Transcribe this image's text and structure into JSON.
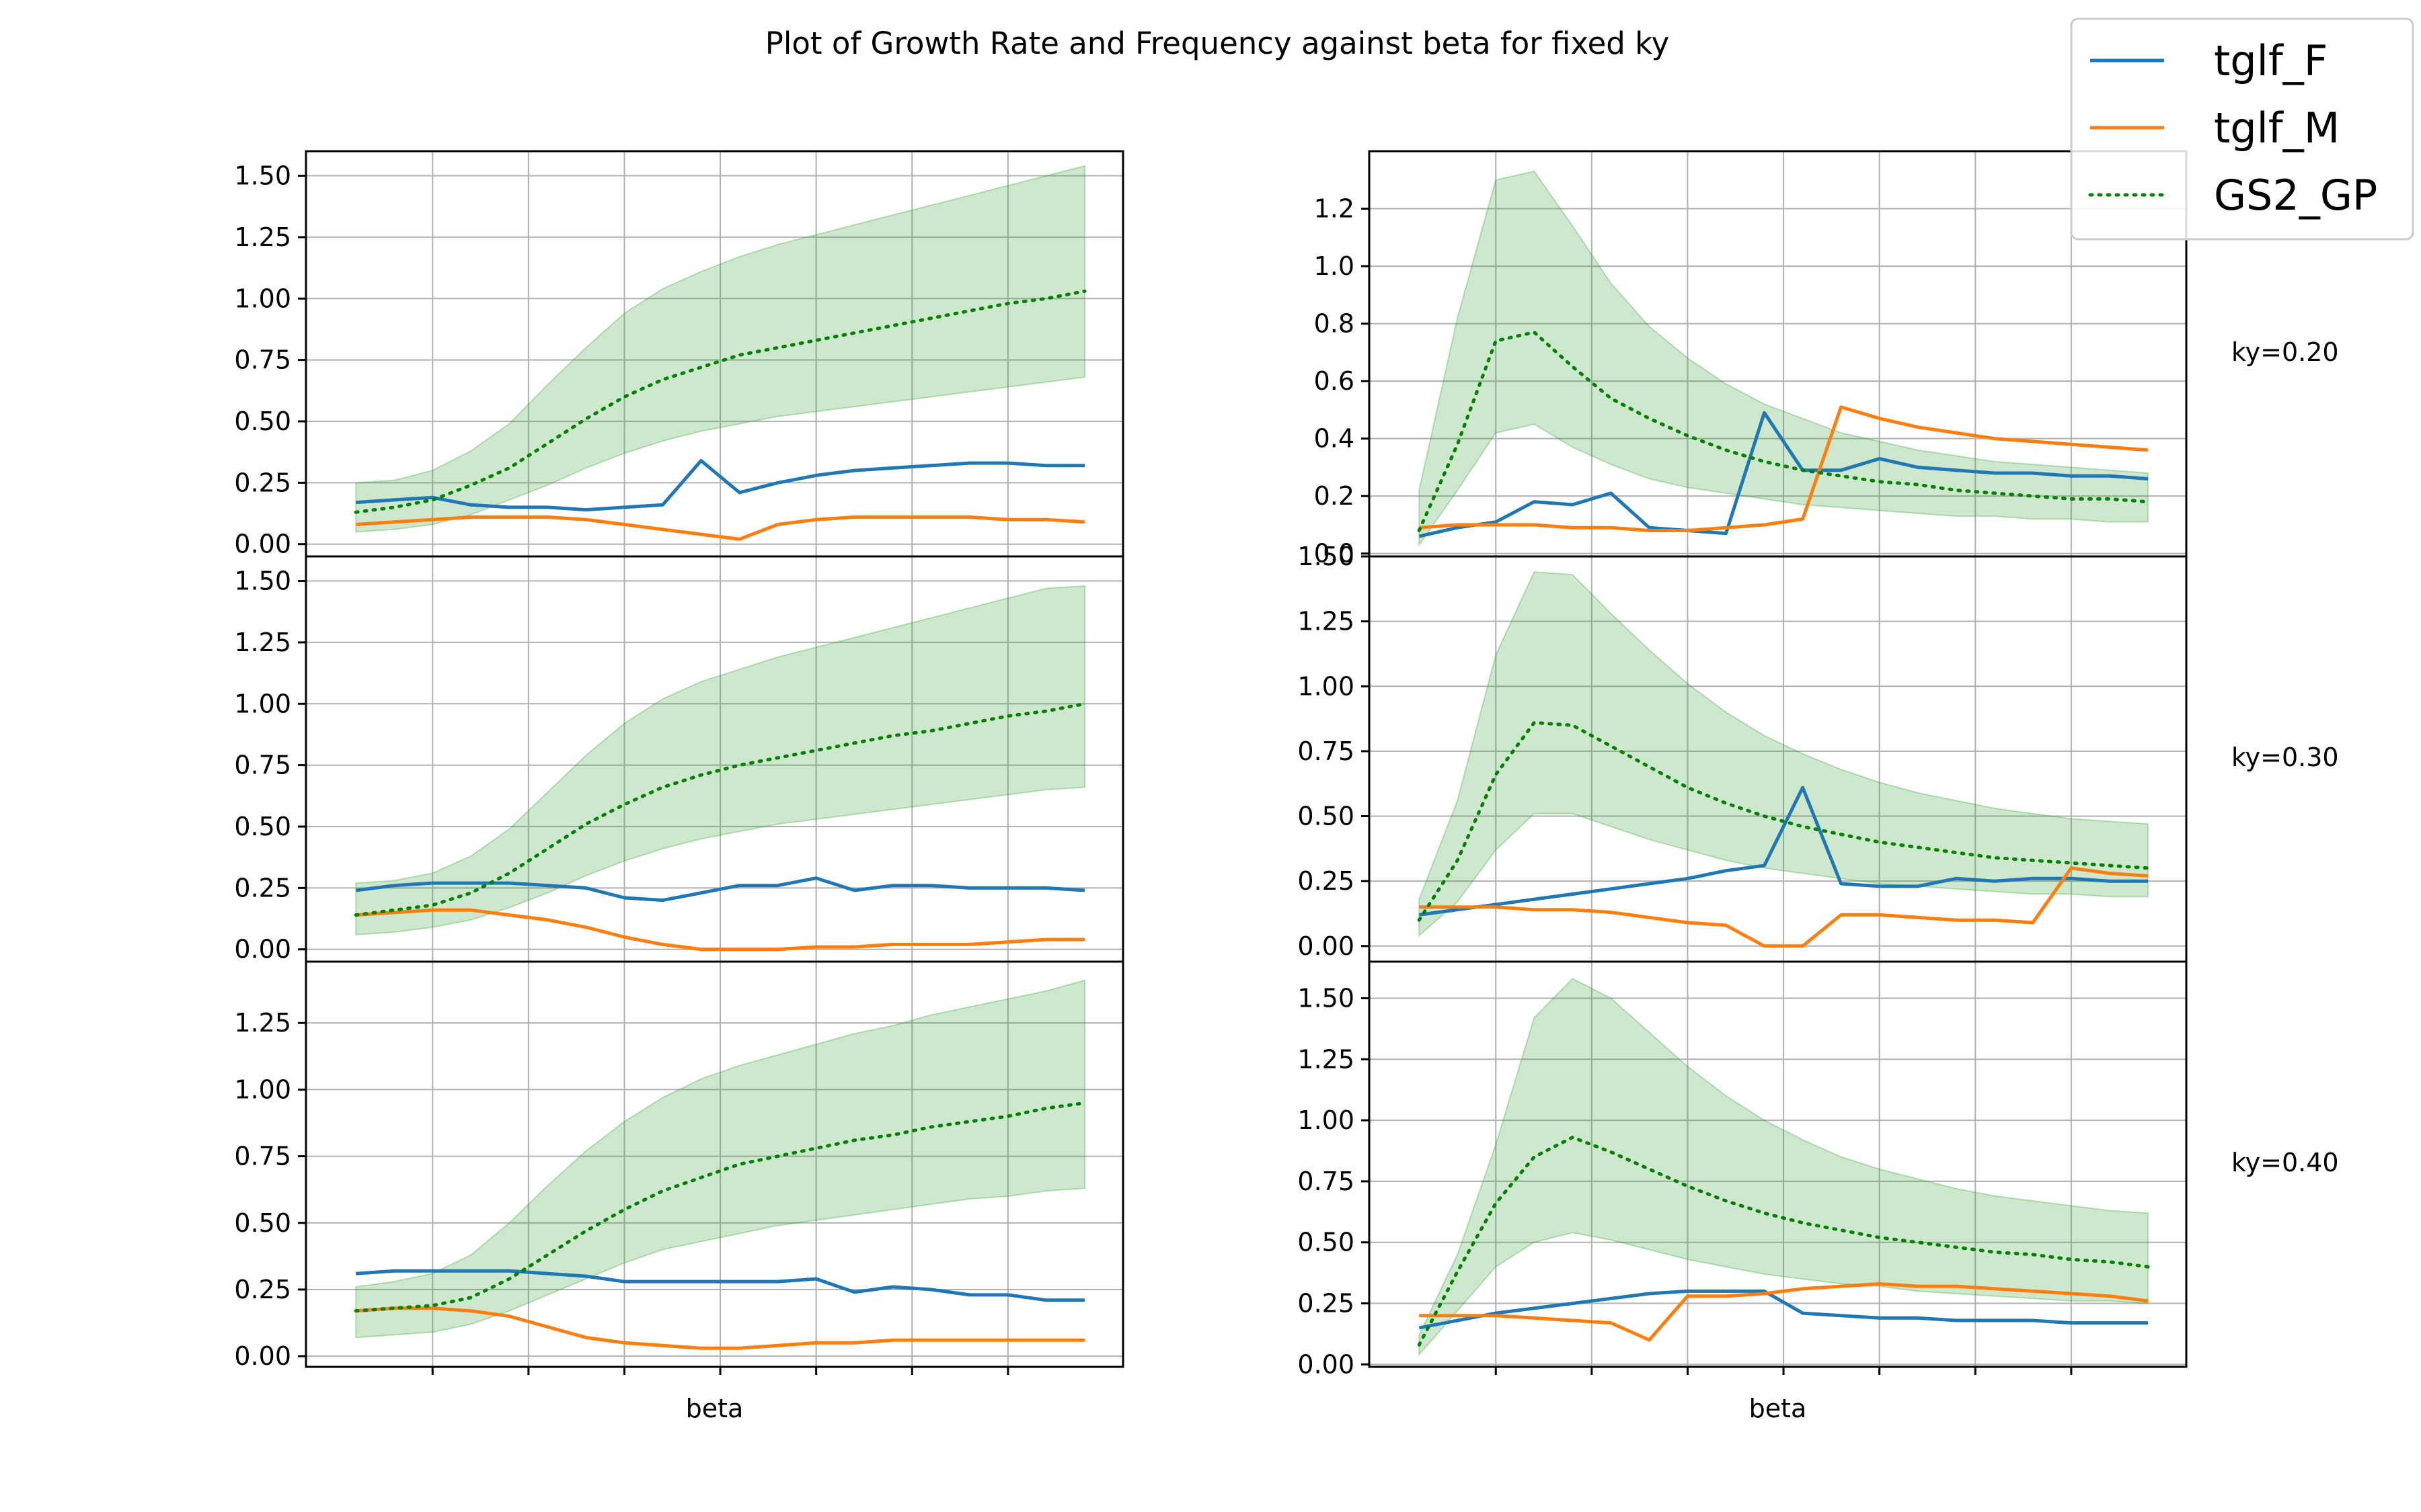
{
  "figure": {
    "title": "Plot of Growth Rate and Frequency against beta for fixed ky"
  },
  "legend": {
    "placement": "top-right",
    "entries": [
      {
        "label": "tglf_F",
        "color": "#1f77b4",
        "style": "solid"
      },
      {
        "label": "tglf_M",
        "color": "#ff7f0e",
        "style": "solid"
      },
      {
        "label": "GS2_GP",
        "color": "#008000",
        "style": "dotted"
      }
    ]
  },
  "row_labels": [
    "ky=0.20",
    "ky=0.30",
    "ky=0.40"
  ],
  "colors": {
    "tglf_F": "#1f77b4",
    "tglf_M": "#ff7f0e",
    "gp": "#008000",
    "band": "#2ca02c"
  },
  "chart_data": [
    {
      "type": "line",
      "xlabel": "",
      "ylabel": "",
      "grid": true,
      "ylim": [
        -0.05,
        1.6
      ],
      "yticks": [
        0.0,
        0.25,
        0.5,
        0.75,
        1.0,
        1.25,
        1.5
      ],
      "yticklabels": [
        "0.00",
        "0.25",
        "0.50",
        "0.75",
        "1.00",
        "1.25",
        "1.50"
      ],
      "x": [
        0,
        1,
        2,
        3,
        4,
        5,
        6,
        7,
        8,
        9,
        10,
        11,
        12,
        13,
        14,
        15,
        16,
        17,
        18,
        19
      ],
      "series": [
        {
          "name": "tglf_F",
          "values": [
            0.17,
            0.18,
            0.19,
            0.16,
            0.15,
            0.15,
            0.14,
            0.15,
            0.16,
            0.34,
            0.21,
            0.25,
            0.28,
            0.3,
            0.31,
            0.32,
            0.33,
            0.33,
            0.32,
            0.32
          ]
        },
        {
          "name": "tglf_M",
          "values": [
            0.08,
            0.09,
            0.1,
            0.11,
            0.11,
            0.11,
            0.1,
            0.08,
            0.06,
            0.04,
            0.02,
            0.08,
            0.1,
            0.11,
            0.11,
            0.11,
            0.11,
            0.1,
            0.1,
            0.09
          ]
        },
        {
          "name": "GS2_GP",
          "values": [
            0.13,
            0.15,
            0.18,
            0.24,
            0.31,
            0.41,
            0.51,
            0.6,
            0.67,
            0.72,
            0.77,
            0.8,
            0.83,
            0.86,
            0.89,
            0.92,
            0.95,
            0.98,
            1.0,
            1.03
          ]
        }
      ],
      "band": {
        "lower": [
          0.05,
          0.06,
          0.08,
          0.12,
          0.18,
          0.24,
          0.31,
          0.37,
          0.42,
          0.46,
          0.49,
          0.52,
          0.54,
          0.56,
          0.58,
          0.6,
          0.62,
          0.64,
          0.66,
          0.68
        ],
        "upper": [
          0.25,
          0.26,
          0.3,
          0.38,
          0.49,
          0.65,
          0.8,
          0.94,
          1.04,
          1.11,
          1.17,
          1.22,
          1.26,
          1.3,
          1.34,
          1.38,
          1.42,
          1.46,
          1.5,
          1.54
        ]
      }
    },
    {
      "type": "line",
      "xlabel": "",
      "ylabel": "",
      "grid": true,
      "ylim": [
        -0.05,
        1.6
      ],
      "yticks": [
        0.0,
        0.25,
        0.5,
        0.75,
        1.0,
        1.25,
        1.5
      ],
      "yticklabels": [
        "0.00",
        "0.25",
        "0.50",
        "0.75",
        "1.00",
        "1.25",
        "1.50"
      ],
      "x": [
        0,
        1,
        2,
        3,
        4,
        5,
        6,
        7,
        8,
        9,
        10,
        11,
        12,
        13,
        14,
        15,
        16,
        17,
        18,
        19
      ],
      "series": [
        {
          "name": "tglf_F",
          "values": [
            0.24,
            0.26,
            0.27,
            0.27,
            0.27,
            0.26,
            0.25,
            0.21,
            0.2,
            0.23,
            0.26,
            0.26,
            0.29,
            0.24,
            0.26,
            0.26,
            0.25,
            0.25,
            0.25,
            0.24
          ]
        },
        {
          "name": "tglf_M",
          "values": [
            0.14,
            0.15,
            0.16,
            0.16,
            0.14,
            0.12,
            0.09,
            0.05,
            0.02,
            0.0,
            0.0,
            0.0,
            0.01,
            0.01,
            0.02,
            0.02,
            0.02,
            0.03,
            0.04,
            0.04
          ]
        },
        {
          "name": "GS2_GP",
          "values": [
            0.14,
            0.16,
            0.18,
            0.23,
            0.31,
            0.41,
            0.51,
            0.59,
            0.66,
            0.71,
            0.75,
            0.78,
            0.81,
            0.84,
            0.87,
            0.89,
            0.92,
            0.95,
            0.97,
            1.0
          ]
        }
      ],
      "band": {
        "lower": [
          0.06,
          0.07,
          0.09,
          0.12,
          0.17,
          0.23,
          0.3,
          0.36,
          0.41,
          0.45,
          0.48,
          0.51,
          0.53,
          0.55,
          0.57,
          0.59,
          0.61,
          0.63,
          0.65,
          0.66
        ],
        "upper": [
          0.27,
          0.28,
          0.31,
          0.38,
          0.49,
          0.64,
          0.79,
          0.92,
          1.02,
          1.09,
          1.14,
          1.19,
          1.23,
          1.27,
          1.31,
          1.35,
          1.39,
          1.43,
          1.47,
          1.48
        ]
      }
    },
    {
      "type": "line",
      "xlabel": "beta",
      "ylabel": "",
      "grid": true,
      "ylim": [
        -0.04,
        1.48
      ],
      "yticks": [
        0.0,
        0.25,
        0.5,
        0.75,
        1.0,
        1.25
      ],
      "yticklabels": [
        "0.00",
        "0.25",
        "0.50",
        "0.75",
        "1.00",
        "1.25"
      ],
      "x": [
        0,
        1,
        2,
        3,
        4,
        5,
        6,
        7,
        8,
        9,
        10,
        11,
        12,
        13,
        14,
        15,
        16,
        17,
        18,
        19
      ],
      "series": [
        {
          "name": "tglf_F",
          "values": [
            0.31,
            0.32,
            0.32,
            0.32,
            0.32,
            0.31,
            0.3,
            0.28,
            0.28,
            0.28,
            0.28,
            0.28,
            0.29,
            0.24,
            0.26,
            0.25,
            0.23,
            0.23,
            0.21,
            0.21
          ]
        },
        {
          "name": "tglf_M",
          "values": [
            0.17,
            0.18,
            0.18,
            0.17,
            0.15,
            0.11,
            0.07,
            0.05,
            0.04,
            0.03,
            0.03,
            0.04,
            0.05,
            0.05,
            0.06,
            0.06,
            0.06,
            0.06,
            0.06,
            0.06
          ]
        },
        {
          "name": "GS2_GP",
          "values": [
            0.17,
            0.18,
            0.19,
            0.22,
            0.29,
            0.38,
            0.47,
            0.55,
            0.62,
            0.67,
            0.72,
            0.75,
            0.78,
            0.81,
            0.83,
            0.86,
            0.88,
            0.9,
            0.93,
            0.95
          ]
        }
      ],
      "band": {
        "lower": [
          0.07,
          0.08,
          0.09,
          0.12,
          0.17,
          0.23,
          0.29,
          0.35,
          0.4,
          0.43,
          0.46,
          0.49,
          0.51,
          0.53,
          0.55,
          0.57,
          0.59,
          0.6,
          0.62,
          0.63
        ],
        "upper": [
          0.26,
          0.28,
          0.31,
          0.38,
          0.5,
          0.64,
          0.77,
          0.88,
          0.97,
          1.04,
          1.09,
          1.13,
          1.17,
          1.21,
          1.24,
          1.28,
          1.31,
          1.34,
          1.37,
          1.41
        ]
      }
    },
    {
      "type": "line",
      "xlabel": "",
      "ylabel": "",
      "grid": true,
      "ylim": [
        -0.01,
        1.4
      ],
      "yticks": [
        0.0,
        0.2,
        0.4,
        0.6,
        0.8,
        1.0,
        1.2
      ],
      "yticklabels": [
        "0.0",
        "0.2",
        "0.4",
        "0.6",
        "0.8",
        "1.0",
        "1.2"
      ],
      "x": [
        0,
        1,
        2,
        3,
        4,
        5,
        6,
        7,
        8,
        9,
        10,
        11,
        12,
        13,
        14,
        15,
        16,
        17,
        18,
        19
      ],
      "series": [
        {
          "name": "tglf_F",
          "values": [
            0.06,
            0.09,
            0.11,
            0.18,
            0.17,
            0.21,
            0.09,
            0.08,
            0.07,
            0.49,
            0.29,
            0.29,
            0.33,
            0.3,
            0.29,
            0.28,
            0.28,
            0.27,
            0.27,
            0.26
          ]
        },
        {
          "name": "tglf_M",
          "values": [
            0.09,
            0.1,
            0.1,
            0.1,
            0.09,
            0.09,
            0.08,
            0.08,
            0.09,
            0.1,
            0.12,
            0.51,
            0.47,
            0.44,
            0.42,
            0.4,
            0.39,
            0.38,
            0.37,
            0.36
          ]
        },
        {
          "name": "GS2_GP",
          "values": [
            0.08,
            0.38,
            0.74,
            0.77,
            0.65,
            0.54,
            0.47,
            0.41,
            0.36,
            0.32,
            0.29,
            0.27,
            0.25,
            0.24,
            0.22,
            0.21,
            0.2,
            0.19,
            0.19,
            0.18
          ]
        }
      ],
      "band": {
        "lower": [
          0.03,
          0.22,
          0.42,
          0.45,
          0.37,
          0.31,
          0.26,
          0.23,
          0.21,
          0.19,
          0.17,
          0.16,
          0.15,
          0.14,
          0.13,
          0.13,
          0.12,
          0.12,
          0.11,
          0.11
        ],
        "upper": [
          0.22,
          0.82,
          1.3,
          1.33,
          1.14,
          0.94,
          0.79,
          0.68,
          0.59,
          0.52,
          0.47,
          0.42,
          0.39,
          0.36,
          0.34,
          0.32,
          0.31,
          0.3,
          0.29,
          0.28
        ]
      }
    },
    {
      "type": "line",
      "xlabel": "",
      "ylabel": "",
      "grid": true,
      "ylim": [
        -0.06,
        1.5
      ],
      "yticks": [
        0.0,
        0.25,
        0.5,
        0.75,
        1.0,
        1.25,
        1.5
      ],
      "yticklabels": [
        "0.00",
        "0.25",
        "0.50",
        "0.75",
        "1.00",
        "1.25",
        "1.50"
      ],
      "x": [
        0,
        1,
        2,
        3,
        4,
        5,
        6,
        7,
        8,
        9,
        10,
        11,
        12,
        13,
        14,
        15,
        16,
        17,
        18,
        19
      ],
      "series": [
        {
          "name": "tglf_F",
          "values": [
            0.12,
            0.14,
            0.16,
            0.18,
            0.2,
            0.22,
            0.24,
            0.26,
            0.29,
            0.31,
            0.61,
            0.24,
            0.23,
            0.23,
            0.26,
            0.25,
            0.26,
            0.26,
            0.25,
            0.25
          ]
        },
        {
          "name": "tglf_M",
          "values": [
            0.15,
            0.15,
            0.15,
            0.14,
            0.14,
            0.13,
            0.11,
            0.09,
            0.08,
            0.0,
            0.0,
            0.12,
            0.12,
            0.11,
            0.1,
            0.1,
            0.09,
            0.3,
            0.28,
            0.27
          ]
        },
        {
          "name": "GS2_GP",
          "values": [
            0.1,
            0.33,
            0.66,
            0.86,
            0.85,
            0.77,
            0.69,
            0.61,
            0.55,
            0.5,
            0.46,
            0.43,
            0.4,
            0.38,
            0.36,
            0.34,
            0.33,
            0.32,
            0.31,
            0.3
          ]
        }
      ],
      "band": {
        "lower": [
          0.04,
          0.17,
          0.37,
          0.51,
          0.51,
          0.46,
          0.41,
          0.37,
          0.33,
          0.3,
          0.28,
          0.26,
          0.24,
          0.23,
          0.22,
          0.21,
          0.2,
          0.2,
          0.19,
          0.19
        ],
        "upper": [
          0.18,
          0.56,
          1.12,
          1.44,
          1.43,
          1.28,
          1.14,
          1.01,
          0.9,
          0.81,
          0.74,
          0.68,
          0.63,
          0.59,
          0.56,
          0.53,
          0.51,
          0.49,
          0.48,
          0.47
        ]
      }
    },
    {
      "type": "line",
      "xlabel": "beta",
      "ylabel": "",
      "grid": true,
      "ylim": [
        -0.01,
        1.65
      ],
      "yticks": [
        0.0,
        0.25,
        0.5,
        0.75,
        1.0,
        1.25,
        1.5
      ],
      "yticklabels": [
        "0.00",
        "0.25",
        "0.50",
        "0.75",
        "1.00",
        "1.25",
        "1.50"
      ],
      "x": [
        0,
        1,
        2,
        3,
        4,
        5,
        6,
        7,
        8,
        9,
        10,
        11,
        12,
        13,
        14,
        15,
        16,
        17,
        18,
        19
      ],
      "series": [
        {
          "name": "tglf_F",
          "values": [
            0.15,
            0.18,
            0.21,
            0.23,
            0.25,
            0.27,
            0.29,
            0.3,
            0.3,
            0.3,
            0.21,
            0.2,
            0.19,
            0.19,
            0.18,
            0.18,
            0.18,
            0.17,
            0.17,
            0.17
          ]
        },
        {
          "name": "tglf_M",
          "values": [
            0.2,
            0.2,
            0.2,
            0.19,
            0.18,
            0.17,
            0.1,
            0.28,
            0.28,
            0.29,
            0.31,
            0.32,
            0.33,
            0.32,
            0.32,
            0.31,
            0.3,
            0.29,
            0.28,
            0.26
          ]
        },
        {
          "name": "GS2_GP",
          "values": [
            0.08,
            0.38,
            0.66,
            0.85,
            0.93,
            0.87,
            0.8,
            0.73,
            0.67,
            0.62,
            0.58,
            0.55,
            0.52,
            0.5,
            0.48,
            0.46,
            0.45,
            0.43,
            0.42,
            0.4
          ]
        }
      ],
      "band": {
        "lower": [
          0.04,
          0.22,
          0.4,
          0.5,
          0.54,
          0.51,
          0.47,
          0.43,
          0.4,
          0.37,
          0.35,
          0.33,
          0.32,
          0.3,
          0.29,
          0.28,
          0.27,
          0.26,
          0.26,
          0.25
        ],
        "upper": [
          0.12,
          0.45,
          0.9,
          1.42,
          1.58,
          1.5,
          1.36,
          1.22,
          1.1,
          1.0,
          0.92,
          0.85,
          0.8,
          0.76,
          0.72,
          0.69,
          0.67,
          0.65,
          0.63,
          0.62
        ]
      }
    }
  ]
}
